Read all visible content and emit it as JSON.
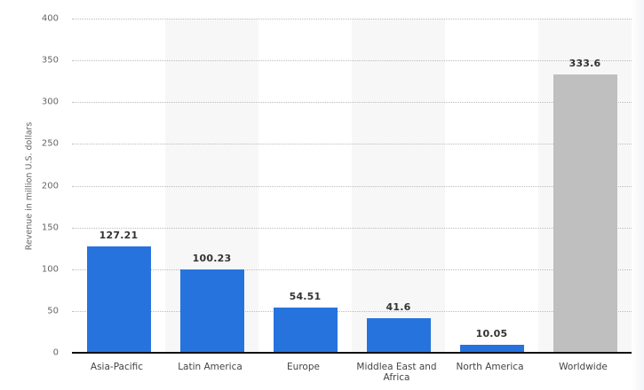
{
  "chart_data": {
    "type": "bar",
    "title": "",
    "xlabel": "",
    "ylabel": "Revenue in million U.S. dollars",
    "ylim": [
      0,
      400
    ],
    "yticks": [
      0,
      50,
      100,
      150,
      200,
      250,
      300,
      350,
      400
    ],
    "grid": true,
    "legend": null,
    "categories": [
      "Asia-Pacific",
      "Latin America",
      "Europe",
      "Middlea East and Africa",
      "North America",
      "Worldwide"
    ],
    "values": [
      127.21,
      100.23,
      54.51,
      41.6,
      10.05,
      333.6
    ],
    "value_labels": [
      "127.21",
      "100.23",
      "54.51",
      "41.6",
      "10.05",
      "333.6"
    ],
    "colors": [
      "#2673dd",
      "#2673dd",
      "#2673dd",
      "#2673dd",
      "#2673dd",
      "#bfbfbf"
    ]
  }
}
